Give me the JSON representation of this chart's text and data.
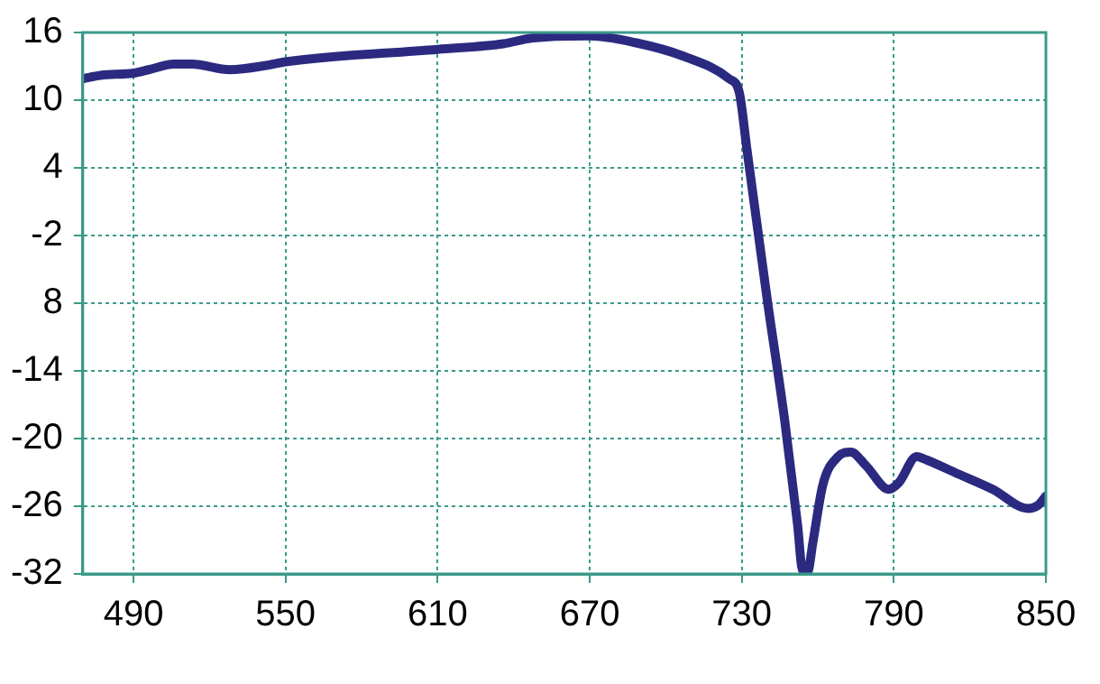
{
  "chart_data": {
    "type": "line",
    "grid": true,
    "marker": "none",
    "line_style": "solid",
    "xlim": [
      470,
      850
    ],
    "xticks": [
      490,
      550,
      610,
      670,
      730,
      790,
      850
    ],
    "ylim": [
      -32,
      16
    ],
    "yticks": [
      16,
      10,
      4,
      -2,
      {
        "value": -8,
        "label": "8"
      },
      -14,
      -20,
      -26,
      -32
    ],
    "series": [
      {
        "color": "#2b2a80",
        "x": [
          470,
          477,
          490,
          496,
          506,
          513,
          528,
          543,
          550,
          610,
          636,
          647,
          670,
          688,
          707,
          725,
          729,
          732,
          740,
          747,
          752,
          754,
          756,
          758,
          762,
          768,
          773,
          779,
          788,
          792,
          799,
          803,
          814,
          829,
          843,
          847,
          850
        ],
        "values": [
          11.9,
          12.2,
          12.4,
          12.7,
          13.2,
          13.2,
          12.7,
          13.1,
          13.4,
          14.5,
          15.0,
          15.5,
          15.7,
          15.1,
          13.9,
          11.9,
          10.7,
          5.7,
          -7.6,
          -18.5,
          -27.6,
          -31.7,
          -31.8,
          -29.3,
          -24.1,
          -21.6,
          -21.2,
          -22.4,
          -24.5,
          -23.9,
          -21.6,
          -21.9,
          -23.0,
          -24.5,
          -26.2,
          -25.9,
          -25.1
        ]
      }
    ]
  }
}
